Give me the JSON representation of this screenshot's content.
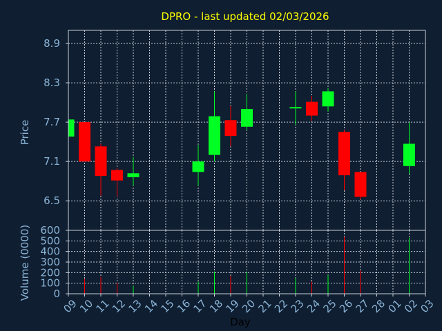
{
  "chart_data": {
    "type": "candlestick",
    "title": "DPRO - last updated 02/03/2026",
    "xlabel": "Day",
    "x_ticks": [
      "09",
      "10",
      "11",
      "12",
      "13",
      "14",
      "15",
      "16",
      "17",
      "18",
      "19",
      "20",
      "21",
      "22",
      "23",
      "24",
      "25",
      "26",
      "27",
      "28",
      "01",
      "02",
      "03"
    ],
    "price_panel": {
      "ylabel": "Price",
      "ylim": [
        6.05,
        9.1
      ],
      "y_ticks": [
        6.5,
        7.1,
        7.7,
        8.3,
        8.9
      ],
      "y_tick_labels": [
        "6.5",
        "7.1",
        "7.7",
        "8.3",
        "8.9"
      ]
    },
    "volume_panel": {
      "ylabel": "Volume (0000)",
      "ylim": [
        0,
        600
      ],
      "y_ticks": [
        0,
        100,
        200,
        300,
        400,
        500,
        600
      ],
      "y_tick_labels": [
        "0",
        "100",
        "200",
        "300",
        "400",
        "500",
        "600"
      ]
    },
    "candles": [
      {
        "day": "09",
        "open": 7.48,
        "high": 7.74,
        "low": 7.48,
        "close": 7.74,
        "volume": 0
      },
      {
        "day": "10",
        "open": 7.7,
        "high": 7.7,
        "low": 7.1,
        "close": 7.1,
        "volume": 140
      },
      {
        "day": "11",
        "open": 7.33,
        "high": 7.37,
        "low": 6.58,
        "close": 6.88,
        "volume": 160
      },
      {
        "day": "12",
        "open": 6.97,
        "high": 7.0,
        "low": 6.56,
        "close": 6.81,
        "volume": 105
      },
      {
        "day": "13",
        "open": 6.86,
        "high": 7.17,
        "low": 6.73,
        "close": 6.92,
        "volume": 75
      },
      {
        "day": "17",
        "open": 6.94,
        "high": 7.35,
        "low": 6.73,
        "close": 7.1,
        "volume": 115
      },
      {
        "day": "18",
        "open": 7.2,
        "high": 8.17,
        "low": 7.1,
        "close": 7.79,
        "volume": 210
      },
      {
        "day": "19",
        "open": 7.73,
        "high": 7.95,
        "low": 7.33,
        "close": 7.49,
        "volume": 170
      },
      {
        "day": "20",
        "open": 7.63,
        "high": 8.13,
        "low": 7.58,
        "close": 7.9,
        "volume": 210
      },
      {
        "day": "23",
        "open": 7.91,
        "high": 8.17,
        "low": 7.66,
        "close": 7.93,
        "volume": 150
      },
      {
        "day": "24",
        "open": 8.01,
        "high": 8.1,
        "low": 7.72,
        "close": 7.8,
        "volume": 115
      },
      {
        "day": "25",
        "open": 7.94,
        "high": 8.22,
        "low": 7.86,
        "close": 8.17,
        "volume": 175
      },
      {
        "day": "26",
        "open": 7.55,
        "high": 7.58,
        "low": 6.66,
        "close": 6.89,
        "volume": 540
      },
      {
        "day": "27",
        "open": 6.94,
        "high": 6.94,
        "low": 6.52,
        "close": 6.56,
        "volume": 220
      },
      {
        "day": "02",
        "open": 7.03,
        "high": 7.7,
        "low": 6.91,
        "close": 7.37,
        "volume": 530
      }
    ],
    "grid": true,
    "colors": {
      "up": "#00ff22",
      "down": "#ff0000",
      "background": "#0f1e30",
      "frame": "#c8d0dc",
      "grid": "#c8d0dc",
      "tick_text": "#8ab4d8",
      "axis_title": "#8ab4d8",
      "xlabel": "#000000",
      "title": "#ffff00"
    }
  }
}
